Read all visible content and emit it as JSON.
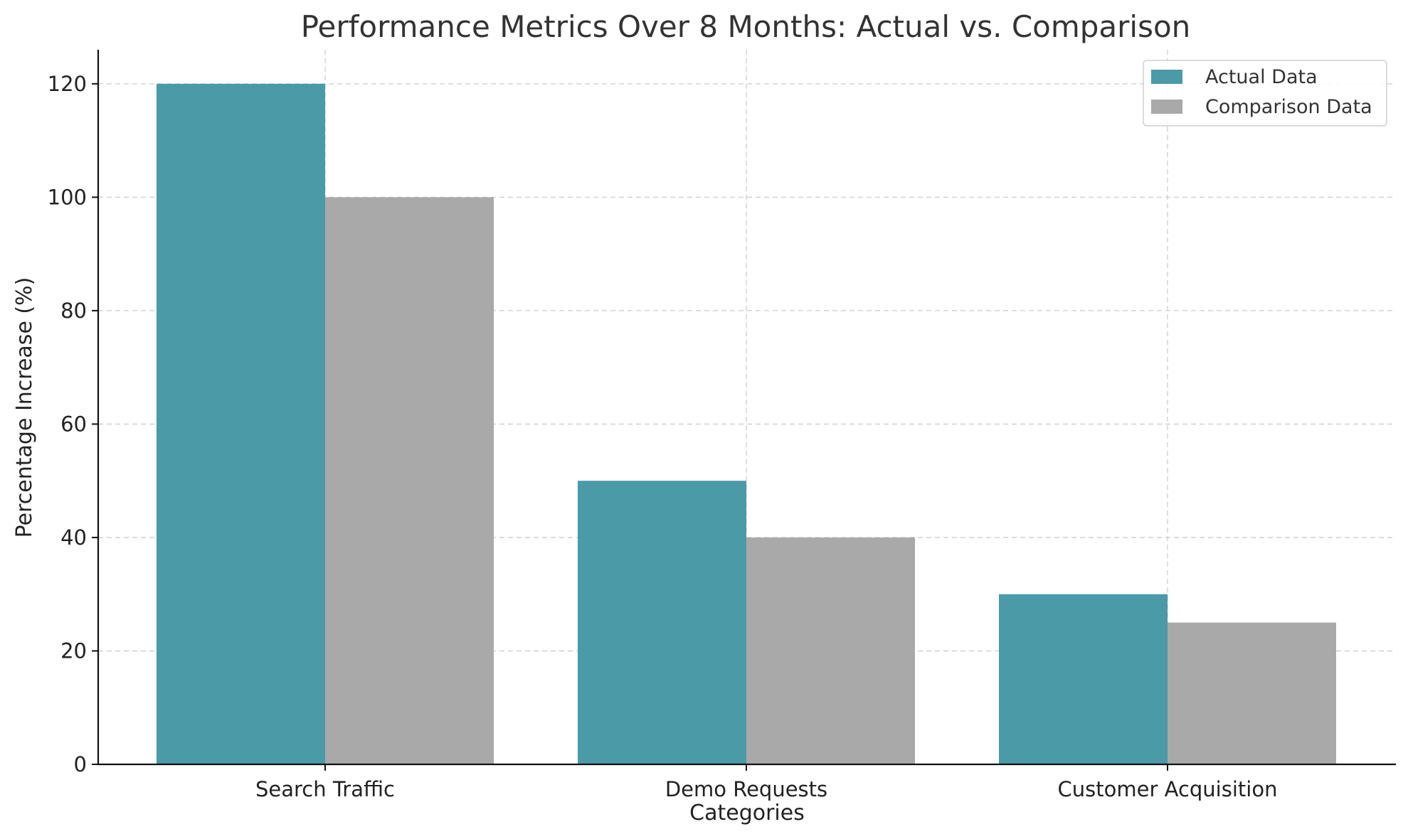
{
  "chart_data": {
    "type": "bar",
    "title": "Performance Metrics Over 8 Months: Actual vs. Comparison",
    "xlabel": "Categories",
    "ylabel": "Percentage Increase (%)",
    "categories": [
      "Search Traffic",
      "Demo Requests",
      "Customer Acquisition"
    ],
    "series": [
      {
        "name": "Actual Data",
        "values": [
          120,
          50,
          30
        ],
        "color": "#4a9aa8"
      },
      {
        "name": "Comparison Data",
        "values": [
          100,
          40,
          25
        ],
        "color": "#a9a9a9"
      }
    ],
    "ylim": [
      0,
      126
    ],
    "yticks": [
      0,
      20,
      40,
      60,
      80,
      100,
      120
    ],
    "grid": true,
    "legend_position": "top-right"
  }
}
